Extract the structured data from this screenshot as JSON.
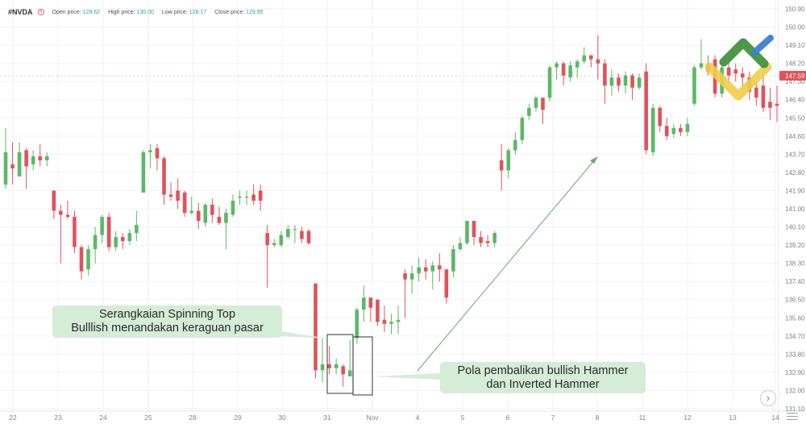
{
  "header": {
    "symbol": "#NVDA",
    "open_label": "Open price:",
    "open_value": "128.62",
    "high_label": "High price:",
    "high_value": "130.00",
    "low_label": "Low price:",
    "low_value": "128.17",
    "close_label": "Close price:",
    "close_value": "129.95"
  },
  "annotations": {
    "spinning_top": [
      "Serangkaian Spinning Top",
      "Bulllish menandakan keraguan pasar"
    ],
    "hammer": [
      "Pola pembalikan bullish Hammer",
      "dan Inverted Hammer"
    ]
  },
  "icons": {
    "logo": "logo-icon",
    "nav": "chevron-right-icon",
    "menu": "menu-icon"
  },
  "colors": {
    "up": "#5cb865",
    "down": "#e0525a",
    "price_tag": "#e0525a",
    "arrow": "#6aa86a",
    "callout_bg": "#d5ecd6"
  },
  "chart_data": {
    "type": "candlestick",
    "symbol": "#NVDA",
    "y_axis": {
      "ticks": [
        "150.90",
        "150.00",
        "149.10",
        "148.20",
        "147.30",
        "146.40",
        "145.50",
        "144.60",
        "143.70",
        "142.80",
        "141.90",
        "141.00",
        "140.10",
        "139.20",
        "138.30",
        "137.40",
        "136.50",
        "135.60",
        "134.70",
        "133.80",
        "132.90",
        "132.00",
        "131.10"
      ],
      "range": [
        131.1,
        150.9
      ],
      "position": "right"
    },
    "x_axis": {
      "labels": [
        "22",
        "23",
        "24",
        "25",
        "28",
        "29",
        "30",
        "31",
        "Nov",
        "4",
        "5",
        "6",
        "7",
        "8",
        "11",
        "12",
        "13",
        "14"
      ]
    },
    "current_price": "147.59",
    "candles": [
      {
        "o": 142.2,
        "c": 143.8,
        "h": 145.0,
        "l": 142.0
      },
      {
        "o": 143.2,
        "c": 143.0,
        "h": 144.3,
        "l": 142.2
      },
      {
        "o": 142.6,
        "c": 143.8,
        "h": 144.3,
        "l": 142.6
      },
      {
        "o": 143.9,
        "c": 143.1,
        "h": 144.0,
        "l": 142.0
      },
      {
        "o": 143.2,
        "c": 143.6,
        "h": 143.9,
        "l": 142.9
      },
      {
        "o": 143.6,
        "c": 143.4,
        "h": 144.2,
        "l": 143.1
      },
      {
        "o": 143.4,
        "c": 143.6,
        "h": 143.8,
        "l": 143.1
      },
      {
        "o": 141.9,
        "c": 140.9,
        "h": 141.9,
        "l": 140.5
      },
      {
        "o": 140.9,
        "c": 140.7,
        "h": 141.2,
        "l": 138.3
      },
      {
        "o": 140.7,
        "c": 140.6,
        "h": 141.4,
        "l": 140.5
      },
      {
        "o": 140.6,
        "c": 139.1,
        "h": 140.9,
        "l": 138.8
      },
      {
        "o": 139.1,
        "c": 137.9,
        "h": 139.2,
        "l": 137.5
      },
      {
        "o": 138.0,
        "c": 139.0,
        "h": 139.2,
        "l": 137.7
      },
      {
        "o": 139.0,
        "c": 139.7,
        "h": 140.1,
        "l": 138.3
      },
      {
        "o": 139.7,
        "c": 140.6,
        "h": 140.7,
        "l": 139.3
      },
      {
        "o": 140.6,
        "c": 139.1,
        "h": 140.8,
        "l": 138.9
      },
      {
        "o": 139.1,
        "c": 139.6,
        "h": 139.9,
        "l": 138.9
      },
      {
        "o": 139.6,
        "c": 139.4,
        "h": 139.8,
        "l": 139.0
      },
      {
        "o": 139.4,
        "c": 139.8,
        "h": 140.0,
        "l": 139.2
      },
      {
        "o": 139.8,
        "c": 140.2,
        "h": 140.9,
        "l": 139.4
      },
      {
        "o": 141.8,
        "c": 143.8,
        "h": 143.9,
        "l": 141.8
      },
      {
        "o": 143.8,
        "c": 143.9,
        "h": 144.2,
        "l": 143.0
      },
      {
        "o": 144.0,
        "c": 143.5,
        "h": 144.2,
        "l": 142.9
      },
      {
        "o": 143.5,
        "c": 141.7,
        "h": 143.6,
        "l": 141.2
      },
      {
        "o": 141.7,
        "c": 141.6,
        "h": 142.3,
        "l": 141.4
      },
      {
        "o": 141.9,
        "c": 141.4,
        "h": 142.5,
        "l": 141.0
      },
      {
        "o": 141.8,
        "c": 140.8,
        "h": 141.9,
        "l": 140.6
      },
      {
        "o": 140.8,
        "c": 140.9,
        "h": 141.6,
        "l": 140.7
      },
      {
        "o": 140.9,
        "c": 140.4,
        "h": 141.3,
        "l": 140.0
      },
      {
        "o": 140.3,
        "c": 141.2,
        "h": 141.3,
        "l": 140.1
      },
      {
        "o": 141.2,
        "c": 140.7,
        "h": 141.5,
        "l": 140.3
      },
      {
        "o": 140.6,
        "c": 140.3,
        "h": 141.1,
        "l": 140.2
      },
      {
        "o": 140.3,
        "c": 140.8,
        "h": 141.0,
        "l": 139.0
      },
      {
        "o": 140.7,
        "c": 141.4,
        "h": 141.7,
        "l": 140.6
      },
      {
        "o": 141.6,
        "c": 141.6,
        "h": 141.9,
        "l": 141.2
      },
      {
        "o": 141.6,
        "c": 141.6,
        "h": 141.9,
        "l": 141.2
      },
      {
        "o": 141.7,
        "c": 141.4,
        "h": 142.2,
        "l": 141.2
      },
      {
        "o": 141.9,
        "c": 141.4,
        "h": 142.2,
        "l": 140.9
      },
      {
        "o": 139.8,
        "c": 139.2,
        "h": 140.2,
        "l": 137.1
      },
      {
        "o": 139.2,
        "c": 139.3,
        "h": 139.5,
        "l": 139.1
      },
      {
        "o": 139.2,
        "c": 139.7,
        "h": 139.9,
        "l": 139.1
      },
      {
        "o": 139.6,
        "c": 140.0,
        "h": 140.2,
        "l": 139.5
      },
      {
        "o": 140.0,
        "c": 140.0,
        "h": 140.2,
        "l": 139.3
      },
      {
        "o": 139.9,
        "c": 139.5,
        "h": 140.1,
        "l": 139.3
      },
      {
        "o": 139.9,
        "c": 139.3,
        "h": 140.0,
        "l": 139.2
      },
      {
        "o": 137.3,
        "c": 133.0,
        "h": 137.3,
        "l": 132.6
      },
      {
        "o": 133.0,
        "c": 133.3,
        "h": 134.6,
        "l": 132.4
      },
      {
        "o": 133.3,
        "c": 133.1,
        "h": 134.2,
        "l": 132.8
      },
      {
        "o": 133.1,
        "c": 133.3,
        "h": 133.6,
        "l": 132.8
      },
      {
        "o": 133.2,
        "c": 132.8,
        "h": 133.3,
        "l": 132.2
      },
      {
        "o": 132.7,
        "c": 133.0,
        "h": 134.5,
        "l": 132.7
      },
      {
        "o": 134.6,
        "c": 136.0,
        "h": 136.1,
        "l": 134.3
      },
      {
        "o": 136.0,
        "c": 136.6,
        "h": 137.2,
        "l": 135.4
      },
      {
        "o": 136.6,
        "c": 136.1,
        "h": 136.6,
        "l": 135.4
      },
      {
        "o": 136.5,
        "c": 135.4,
        "h": 136.5,
        "l": 135.2
      },
      {
        "o": 135.5,
        "c": 135.3,
        "h": 136.2,
        "l": 134.9
      },
      {
        "o": 135.3,
        "c": 135.4,
        "h": 135.8,
        "l": 134.8
      },
      {
        "o": 135.4,
        "c": 135.5,
        "h": 136.2,
        "l": 134.8
      },
      {
        "o": 137.8,
        "c": 137.5,
        "h": 138.0,
        "l": 135.6
      },
      {
        "o": 137.5,
        "c": 137.8,
        "h": 138.2,
        "l": 136.8
      },
      {
        "o": 137.8,
        "c": 138.1,
        "h": 138.6,
        "l": 137.4
      },
      {
        "o": 138.1,
        "c": 137.9,
        "h": 138.5,
        "l": 137.5
      },
      {
        "o": 137.9,
        "c": 138.2,
        "h": 138.4,
        "l": 137.0
      },
      {
        "o": 138.2,
        "c": 138.0,
        "h": 138.8,
        "l": 137.4
      },
      {
        "o": 138.0,
        "c": 136.6,
        "h": 138.0,
        "l": 136.3
      },
      {
        "o": 137.9,
        "c": 139.0,
        "h": 139.2,
        "l": 137.6
      },
      {
        "o": 139.0,
        "c": 139.3,
        "h": 139.6,
        "l": 138.9
      },
      {
        "o": 139.3,
        "c": 140.4,
        "h": 140.4,
        "l": 139.2
      },
      {
        "o": 140.4,
        "c": 139.6,
        "h": 140.4,
        "l": 139.2
      },
      {
        "o": 139.6,
        "c": 139.3,
        "h": 139.9,
        "l": 139.1
      },
      {
        "o": 139.4,
        "c": 139.3,
        "h": 139.7,
        "l": 139.1
      },
      {
        "o": 139.3,
        "c": 139.8,
        "h": 139.9,
        "l": 139.1
      },
      {
        "o": 143.4,
        "c": 142.9,
        "h": 144.2,
        "l": 141.9
      },
      {
        "o": 142.9,
        "c": 143.9,
        "h": 144.0,
        "l": 142.5
      },
      {
        "o": 143.9,
        "c": 144.4,
        "h": 144.8,
        "l": 143.7
      },
      {
        "o": 144.4,
        "c": 145.5,
        "h": 145.6,
        "l": 144.2
      },
      {
        "o": 145.6,
        "c": 146.0,
        "h": 146.2,
        "l": 145.4
      },
      {
        "o": 146.0,
        "c": 146.5,
        "h": 146.6,
        "l": 145.8
      },
      {
        "o": 146.5,
        "c": 145.9,
        "h": 146.5,
        "l": 145.2
      },
      {
        "o": 146.5,
        "c": 148.0,
        "h": 148.1,
        "l": 146.3
      },
      {
        "o": 148.0,
        "c": 148.2,
        "h": 148.3,
        "l": 147.4
      },
      {
        "o": 148.2,
        "c": 147.6,
        "h": 148.3,
        "l": 147.1
      },
      {
        "o": 147.5,
        "c": 148.1,
        "h": 148.3,
        "l": 147.3
      },
      {
        "o": 148.0,
        "c": 148.3,
        "h": 148.4,
        "l": 147.5
      },
      {
        "o": 148.3,
        "c": 148.6,
        "h": 149.0,
        "l": 148.2
      },
      {
        "o": 148.6,
        "c": 148.4,
        "h": 148.6,
        "l": 148.0
      },
      {
        "o": 148.4,
        "c": 148.2,
        "h": 149.6,
        "l": 147.4
      },
      {
        "o": 148.2,
        "c": 147.1,
        "h": 148.4,
        "l": 146.2
      },
      {
        "o": 147.1,
        "c": 147.5,
        "h": 147.9,
        "l": 146.6
      },
      {
        "o": 147.5,
        "c": 147.1,
        "h": 147.7,
        "l": 146.8
      },
      {
        "o": 147.1,
        "c": 147.6,
        "h": 147.8,
        "l": 146.7
      },
      {
        "o": 147.6,
        "c": 147.0,
        "h": 147.7,
        "l": 146.4
      },
      {
        "o": 147.0,
        "c": 147.5,
        "h": 147.7,
        "l": 146.9
      },
      {
        "o": 147.8,
        "c": 143.9,
        "h": 148.2,
        "l": 143.7
      },
      {
        "o": 143.8,
        "c": 146.0,
        "h": 146.2,
        "l": 143.6
      },
      {
        "o": 146.0,
        "c": 145.1,
        "h": 146.1,
        "l": 144.8
      },
      {
        "o": 145.1,
        "c": 144.6,
        "h": 145.5,
        "l": 144.4
      },
      {
        "o": 144.7,
        "c": 145.0,
        "h": 145.2,
        "l": 144.5
      },
      {
        "o": 145.0,
        "c": 144.8,
        "h": 145.2,
        "l": 144.6
      },
      {
        "o": 144.8,
        "c": 145.2,
        "h": 145.5,
        "l": 144.6
      },
      {
        "o": 146.2,
        "c": 148.0,
        "h": 148.1,
        "l": 146.1
      },
      {
        "o": 148.0,
        "c": 148.2,
        "h": 149.4,
        "l": 147.9
      },
      {
        "o": 148.2,
        "c": 147.8,
        "h": 148.6,
        "l": 147.6
      },
      {
        "o": 148.4,
        "c": 146.7,
        "h": 148.6,
        "l": 146.5
      },
      {
        "o": 146.7,
        "c": 148.0,
        "h": 148.2,
        "l": 146.5
      },
      {
        "o": 148.0,
        "c": 147.6,
        "h": 148.3,
        "l": 147.2
      },
      {
        "o": 147.9,
        "c": 147.7,
        "h": 148.2,
        "l": 147.3
      },
      {
        "o": 147.7,
        "c": 147.5,
        "h": 148.0,
        "l": 146.8
      },
      {
        "o": 147.5,
        "c": 146.8,
        "h": 147.8,
        "l": 146.4
      },
      {
        "o": 147.0,
        "c": 146.5,
        "h": 147.3,
        "l": 146.1
      },
      {
        "o": 147.1,
        "c": 146.0,
        "h": 147.6,
        "l": 145.8
      },
      {
        "o": 146.3,
        "c": 146.0,
        "h": 147.0,
        "l": 145.4
      },
      {
        "o": 146.2,
        "c": 146.1,
        "h": 147.1,
        "l": 145.3
      }
    ]
  }
}
